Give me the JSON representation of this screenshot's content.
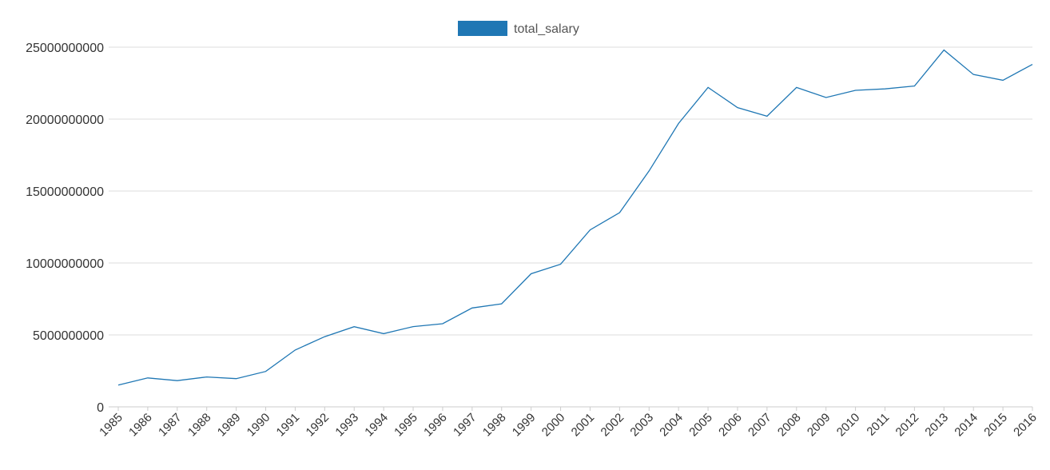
{
  "chart_data": {
    "type": "line",
    "title": "",
    "xlabel": "",
    "ylabel": "",
    "legend": {
      "position": "top-center"
    },
    "grid": true,
    "colors": {
      "series": "#1f77b4",
      "grid": "#dcdcdc",
      "text": "#333333"
    },
    "ylim": [
      0,
      25000000000
    ],
    "yticks": [
      0,
      5000000000,
      10000000000,
      15000000000,
      20000000000,
      25000000000
    ],
    "categories": [
      "1985",
      "1986",
      "1987",
      "1988",
      "1989",
      "1990",
      "1991",
      "1992",
      "1993",
      "1994",
      "1995",
      "1996",
      "1997",
      "1998",
      "1999",
      "2000",
      "2001",
      "2002",
      "2003",
      "2004",
      "2005",
      "2006",
      "2007",
      "2008",
      "2009",
      "2010",
      "2011",
      "2012",
      "2013",
      "2014",
      "2015",
      "2016"
    ],
    "series": [
      {
        "name": "total_salary",
        "values": [
          1510000000,
          2010000000,
          1820000000,
          2080000000,
          1960000000,
          2460000000,
          3950000000,
          4880000000,
          5570000000,
          5090000000,
          5580000000,
          5780000000,
          6870000000,
          7160000000,
          9250000000,
          9910000000,
          12300000000,
          13500000000,
          16400000000,
          19700000000,
          22200000000,
          20800000000,
          20200000000,
          22200000000,
          21500000000,
          22000000000,
          22100000000,
          22300000000,
          24800000000,
          23100000000,
          22700000000,
          23800000000
        ]
      }
    ]
  }
}
